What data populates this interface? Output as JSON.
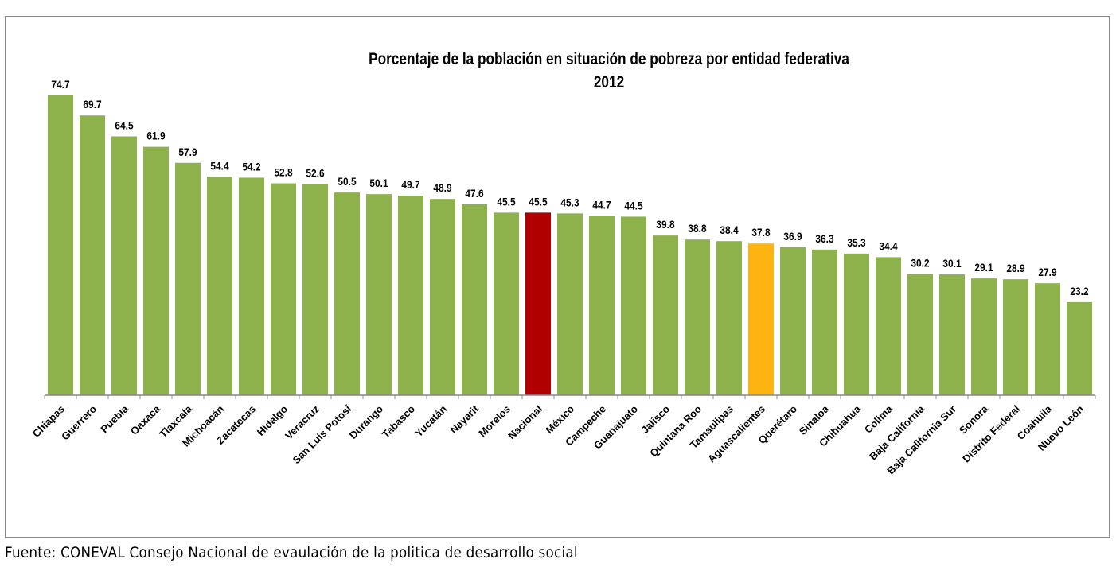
{
  "chart_data": {
    "type": "bar",
    "title": "Porcentaje de la población en situación de pobreza por entidad federativa",
    "subtitle": "2012",
    "xlabel": "",
    "ylabel": "",
    "ylim": [
      0,
      75
    ],
    "grid": false,
    "categories": [
      "Chiapas",
      "Guerrero",
      "Puebla",
      "Oaxaca",
      "Tlaxcala",
      "Michoacán",
      "Zacatecas",
      "Hidalgo",
      "Veracruz",
      "San Luis Potosí",
      "Durango",
      "Tabasco",
      "Yucatán",
      "Nayarit",
      "Morelos",
      "Nacional",
      "México",
      "Campeche",
      "Guanajuato",
      "Jalisco",
      "Quintana Roo",
      "Tamaulipas",
      "Aguascalientes",
      "Querétaro",
      "Sinaloa",
      "Chihuahua",
      "Colima",
      "Baja California",
      "Baja California Sur",
      "Sonora",
      "Distrito Federal",
      "Coahuila",
      "Nuevo León"
    ],
    "values": [
      74.7,
      69.7,
      64.5,
      61.9,
      57.9,
      54.4,
      54.2,
      52.8,
      52.6,
      50.5,
      50.1,
      49.7,
      48.9,
      47.6,
      45.5,
      45.5,
      45.3,
      44.7,
      44.5,
      39.8,
      38.8,
      38.4,
      37.8,
      36.9,
      36.3,
      35.3,
      34.4,
      30.2,
      30.1,
      29.1,
      28.9,
      27.9,
      23.2
    ],
    "colors": {
      "default": "#8db14b",
      "Nacional": "#b00000",
      "Aguascalientes": "#fbb412"
    }
  },
  "source": "Fuente: CONEVAL Consejo Nacional de evaulación de la politica de desarrollo social"
}
